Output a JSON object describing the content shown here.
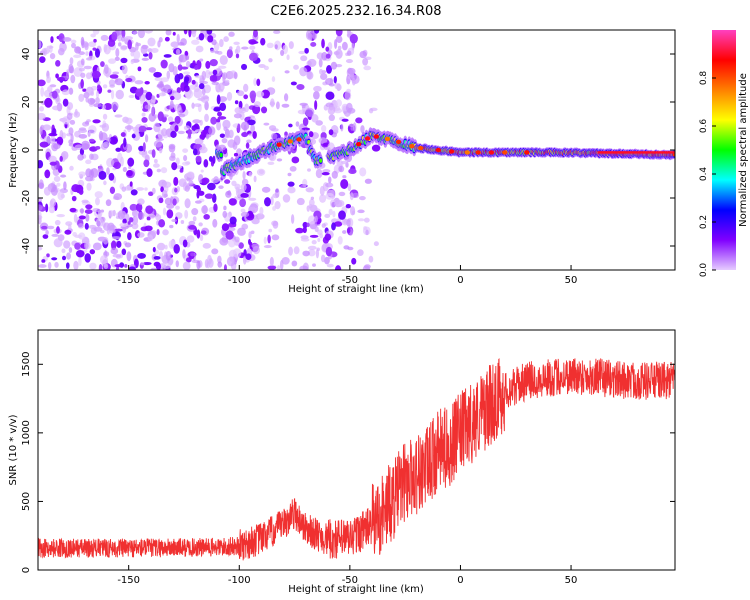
{
  "title": "C2E6.2025.232.16.34.R08",
  "colors": {
    "snr_line": "#f03030",
    "axis": "#000000",
    "background": "#ffffff"
  },
  "chart_data": [
    {
      "type": "heatmap",
      "xlabel": "Height of straight line (km)",
      "ylabel": "Frequency (Hz)",
      "xlim": [
        -191,
        97
      ],
      "ylim": [
        -50,
        50
      ],
      "xticks": [
        -150,
        -100,
        -50,
        0,
        50
      ],
      "yticks": [
        -40,
        -20,
        0,
        20,
        40
      ],
      "colorbar": {
        "label": "Normalized spectral amplitude",
        "range": [
          0,
          1
        ],
        "ticks": [
          "0.0",
          "0.2",
          "0.4",
          "0.6",
          "0.8"
        ],
        "tick_values": [
          0.0,
          0.2,
          0.4,
          0.6,
          0.8
        ],
        "colormap": [
          "#e6ccff",
          "#8000ff",
          "#0000ff",
          "#00ffff",
          "#00ff00",
          "#ffff00",
          "#ff8000",
          "#ff0000",
          "#ff40c0"
        ]
      },
      "ridge": [
        {
          "x": -108,
          "y": -9
        },
        {
          "x": -95,
          "y": -3
        },
        {
          "x": -80,
          "y": 3
        },
        {
          "x": -70,
          "y": 5
        },
        {
          "x": -65,
          "y": -5
        },
        {
          "x": -50,
          "y": 0
        },
        {
          "x": -40,
          "y": 6
        },
        {
          "x": -30,
          "y": 4
        },
        {
          "x": -20,
          "y": 1
        },
        {
          "x": 0,
          "y": -1
        },
        {
          "x": 40,
          "y": -1
        },
        {
          "x": 97,
          "y": -2
        }
      ]
    },
    {
      "type": "line",
      "xlabel": "Height of straight line (km)",
      "ylabel": "SNR (10 * v/v)",
      "xlim": [
        -191,
        97
      ],
      "ylim": [
        0,
        1750
      ],
      "xticks": [
        -150,
        -100,
        -50,
        0,
        50
      ],
      "yticks": [
        0,
        500,
        1000,
        1500
      ],
      "series": [
        {
          "name": "SNR",
          "x": [
            -191,
            -150,
            -110,
            -100,
            -90,
            -80,
            -75,
            -70,
            -60,
            -50,
            -40,
            -30,
            -25,
            -20,
            -15,
            -10,
            -5,
            0,
            10,
            20,
            30,
            40,
            50,
            60,
            70,
            80,
            97
          ],
          "values": [
            160,
            160,
            165,
            175,
            230,
            330,
            420,
            300,
            220,
            230,
            330,
            520,
            650,
            700,
            750,
            870,
            900,
            1000,
            1150,
            1300,
            1380,
            1400,
            1420,
            1410,
            1390,
            1380,
            1380
          ]
        }
      ]
    }
  ]
}
